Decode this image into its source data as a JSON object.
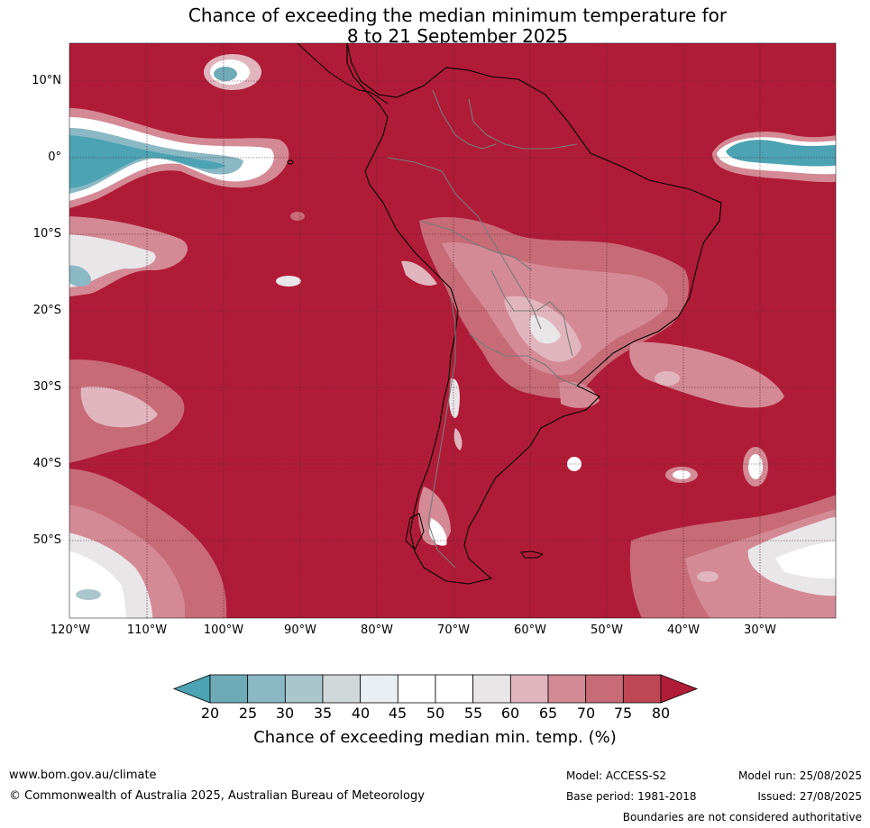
{
  "title": {
    "line1": "Chance of exceeding the median minimum temperature for",
    "line2": "8 to 21 September 2025"
  },
  "map": {
    "region": "South America",
    "background_color": "#b01c37",
    "lat_labels": [
      "10°N",
      "0°",
      "10°S",
      "20°S",
      "30°S",
      "40°S",
      "50°S"
    ],
    "lon_labels": [
      "120°W",
      "110°W",
      "100°W",
      "90°W",
      "80°W",
      "70°W",
      "60°W",
      "50°W",
      "40°W",
      "30°W"
    ]
  },
  "colorbar": {
    "title": "Chance of exceeding median min. temp. (%)",
    "ticks": [
      "20",
      "25",
      "30",
      "35",
      "40",
      "45",
      "50",
      "55",
      "60",
      "65",
      "70",
      "75",
      "80"
    ],
    "colors": [
      "#4ba3b3",
      "#6eabb7",
      "#8ab8c5",
      "#a9c6cc",
      "#d1d8da",
      "#e9eff2",
      "#ffffff",
      "#ffffff",
      "#e9e6e8",
      "#e1b5be",
      "#d38a95",
      "#c76b77",
      "#bf4755",
      "#b01c37"
    ]
  },
  "footer": {
    "url": "www.bom.gov.au/climate",
    "copyright": "© Commonwealth of Australia 2025, Australian Bureau of Meteorology",
    "model": "Model: ACCESS-S2",
    "base_period": "Base period: 1981-2018",
    "model_run": "Model run: 25/08/2025",
    "issued": "Issued: 27/08/2025",
    "boundaries_note": "Boundaries are not considered authoritative"
  }
}
